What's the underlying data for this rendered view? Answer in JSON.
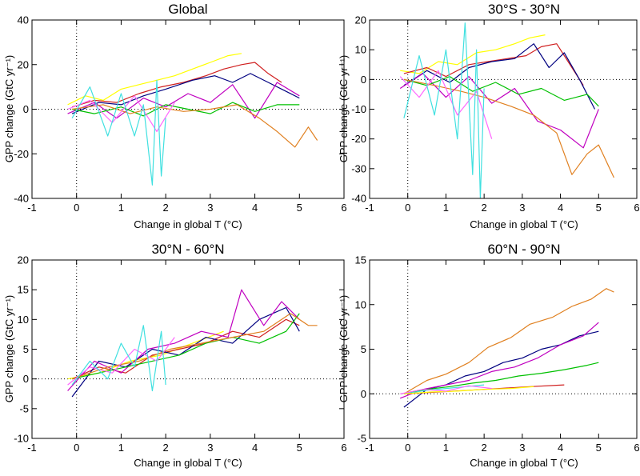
{
  "chart_data": [
    {
      "type": "line",
      "title": "Global",
      "xlabel": "Change in global T (°C)",
      "ylabel": "GPP change (GtC yr⁻¹)",
      "xlim": [
        -1,
        6
      ],
      "ylim": [
        -40,
        40
      ],
      "xticks": [
        -1,
        0,
        1,
        2,
        3,
        4,
        5,
        6
      ],
      "yticks": [
        -40,
        -20,
        0,
        20,
        40
      ],
      "reference_lines": {
        "x": 0,
        "y": 0,
        "style": "dotted"
      },
      "series": [
        {
          "color": "#ffff00",
          "x": [
            -0.2,
            0.2,
            0.6,
            1.0,
            1.4,
            1.8,
            2.2,
            2.6,
            3.0,
            3.4,
            3.7
          ],
          "y": [
            2,
            6,
            4,
            9,
            11,
            13,
            15,
            18,
            21,
            24,
            25
          ]
        },
        {
          "color": "#d02020",
          "x": [
            -0.1,
            0.4,
            0.9,
            1.4,
            1.9,
            2.4,
            2.9,
            3.3,
            3.7,
            4.0,
            4.3,
            4.6
          ],
          "y": [
            1,
            4,
            3,
            7,
            10,
            12,
            15,
            18,
            20,
            21,
            16,
            12
          ]
        },
        {
          "color": "#000080",
          "x": [
            -0.1,
            0.5,
            1.0,
            1.5,
            2.0,
            2.6,
            3.1,
            3.5,
            3.9,
            4.3,
            4.7,
            5.0
          ],
          "y": [
            -2,
            3,
            2,
            6,
            9,
            13,
            15,
            12,
            16,
            12,
            8,
            5
          ]
        },
        {
          "color": "#c000c0",
          "x": [
            -0.2,
            0.4,
            0.9,
            1.5,
            2.0,
            2.5,
            3.0,
            3.5,
            4.0,
            4.5,
            5.0
          ],
          "y": [
            -2,
            3,
            -4,
            5,
            1,
            7,
            3,
            11,
            -4,
            12,
            6
          ]
        },
        {
          "color": "#00c000",
          "x": [
            -0.1,
            0.4,
            1.0,
            1.5,
            2.0,
            2.5,
            3.0,
            3.5,
            4.0,
            4.5,
            5.0
          ],
          "y": [
            0,
            -2,
            1,
            -3,
            2,
            0,
            -2,
            3,
            -1,
            2,
            2
          ]
        },
        {
          "color": "#e08020",
          "x": [
            -0.1,
            0.6,
            1.2,
            1.8,
            2.4,
            3.0,
            3.6,
            4.1,
            4.5,
            4.9,
            5.2,
            5.4
          ],
          "y": [
            0,
            2,
            -2,
            1,
            -1,
            0,
            2,
            -4,
            -10,
            -17,
            -8,
            -14
          ]
        },
        {
          "color": "#ff66ff",
          "x": [
            -0.2,
            0.3,
            0.8,
            1.3,
            1.8,
            2.2
          ],
          "y": [
            0,
            4,
            -6,
            6,
            -10,
            3
          ]
        },
        {
          "color": "#40e0e0",
          "x": [
            -0.1,
            0.3,
            0.7,
            1.0,
            1.3,
            1.5,
            1.7,
            1.8,
            1.9,
            2.0
          ],
          "y": [
            -4,
            10,
            -12,
            7,
            -12,
            2,
            -34,
            13,
            -30,
            -4
          ]
        }
      ]
    },
    {
      "type": "line",
      "title": "30°S - 30°N",
      "xlabel": "Change in global T (°C)",
      "ylabel": "GPP change (GtC yr⁻¹)",
      "xlim": [
        -1,
        6
      ],
      "ylim": [
        -40,
        20
      ],
      "xticks": [
        -1,
        0,
        1,
        2,
        3,
        4,
        5,
        6
      ],
      "yticks": [
        -40,
        -30,
        -20,
        -10,
        0,
        10,
        20
      ],
      "reference_lines": {
        "x": 0,
        "y": 0,
        "style": "dotted"
      },
      "series": [
        {
          "color": "#ffff00",
          "x": [
            -0.2,
            0.3,
            0.8,
            1.3,
            1.8,
            2.3,
            2.8,
            3.2,
            3.6
          ],
          "y": [
            3,
            2,
            6,
            5,
            9,
            10,
            12,
            14,
            15
          ]
        },
        {
          "color": "#d02020",
          "x": [
            -0.1,
            0.5,
            1.0,
            1.6,
            2.1,
            2.6,
            3.1,
            3.5,
            3.9,
            4.2,
            4.6
          ],
          "y": [
            2,
            4,
            1,
            5,
            6,
            7,
            8,
            11,
            12,
            6,
            -2
          ]
        },
        {
          "color": "#000080",
          "x": [
            -0.1,
            0.5,
            1.1,
            1.6,
            2.2,
            2.8,
            3.3,
            3.7,
            4.1,
            4.5,
            4.9
          ],
          "y": [
            -2,
            3,
            -1,
            4,
            6,
            7,
            12,
            4,
            9,
            0,
            -10
          ]
        },
        {
          "color": "#c000c0",
          "x": [
            -0.2,
            0.4,
            1.0,
            1.6,
            2.2,
            2.8,
            3.4,
            4.0,
            4.6,
            5.0
          ],
          "y": [
            -3,
            2,
            -6,
            1,
            -8,
            -3,
            -14,
            -17,
            -23,
            -10
          ]
        },
        {
          "color": "#00c000",
          "x": [
            -0.1,
            0.5,
            1.1,
            1.7,
            2.3,
            2.9,
            3.5,
            4.1,
            4.7,
            5.0
          ],
          "y": [
            0,
            -2,
            1,
            -4,
            -1,
            -5,
            -3,
            -7,
            -5,
            -9
          ]
        },
        {
          "color": "#e08020",
          "x": [
            -0.1,
            0.7,
            1.4,
            2.0,
            2.7,
            3.3,
            3.9,
            4.3,
            4.7,
            5.0,
            5.4
          ],
          "y": [
            0,
            -2,
            -4,
            -6,
            -9,
            -12,
            -18,
            -32,
            -25,
            -22,
            -33
          ]
        },
        {
          "color": "#ff66ff",
          "x": [
            -0.2,
            0.3,
            0.8,
            1.3,
            1.8,
            2.2
          ],
          "y": [
            1,
            -6,
            3,
            -12,
            -4,
            -20
          ]
        },
        {
          "color": "#40e0e0",
          "x": [
            -0.1,
            0.3,
            0.7,
            1.0,
            1.3,
            1.5,
            1.7,
            1.8,
            1.9,
            2.0
          ],
          "y": [
            -13,
            8,
            -12,
            10,
            -20,
            19,
            -32,
            10,
            -40,
            -3
          ]
        }
      ]
    },
    {
      "type": "line",
      "title": "30°N - 60°N",
      "xlabel": "Change in global T (°C)",
      "ylabel": "GPP change (GtC yr⁻¹)",
      "xlim": [
        -1,
        6
      ],
      "ylim": [
        -10,
        20
      ],
      "xticks": [
        -1,
        0,
        1,
        2,
        3,
        4,
        5,
        6
      ],
      "yticks": [
        -10,
        -5,
        0,
        5,
        10,
        15,
        20
      ],
      "reference_lines": {
        "x": 0,
        "y": 0,
        "style": "dotted"
      },
      "series": [
        {
          "color": "#ffff00",
          "x": [
            -0.2,
            0.5,
            1.2,
            1.9,
            2.6,
            3.3
          ],
          "y": [
            0,
            1,
            3,
            4,
            6,
            8
          ]
        },
        {
          "color": "#d02020",
          "x": [
            -0.1,
            0.5,
            1.1,
            1.7,
            2.3,
            2.9,
            3.5,
            4.1,
            4.7,
            5.0
          ],
          "y": [
            0,
            2,
            1,
            4,
            5,
            6,
            8,
            7,
            10,
            9
          ]
        },
        {
          "color": "#000080",
          "x": [
            -0.1,
            0.5,
            1.1,
            1.7,
            2.3,
            2.9,
            3.5,
            4.1,
            4.7,
            5.0
          ],
          "y": [
            -3,
            3,
            2,
            5,
            4,
            7,
            6,
            10,
            12,
            8
          ]
        },
        {
          "color": "#c000c0",
          "x": [
            -0.2,
            0.4,
            1.0,
            1.6,
            2.2,
            2.8,
            3.4,
            3.7,
            4.2,
            4.6,
            5.0
          ],
          "y": [
            -2,
            3,
            1,
            5,
            6,
            8,
            7,
            15,
            9,
            13,
            10
          ]
        },
        {
          "color": "#00c000",
          "x": [
            -0.1,
            0.5,
            1.1,
            1.7,
            2.3,
            2.9,
            3.5,
            4.1,
            4.7,
            5.0
          ],
          "y": [
            0,
            1,
            2,
            3,
            4,
            6,
            7,
            6,
            8,
            11
          ]
        },
        {
          "color": "#e08020",
          "x": [
            -0.1,
            0.7,
            1.4,
            2.1,
            2.8,
            3.5,
            4.2,
            4.8,
            5.2,
            5.4
          ],
          "y": [
            0,
            2,
            3,
            5,
            6,
            7,
            8,
            11,
            9,
            9
          ]
        },
        {
          "color": "#ff66ff",
          "x": [
            -0.2,
            0.3,
            0.8,
            1.3,
            1.8,
            2.2
          ],
          "y": [
            -1,
            2,
            1,
            5,
            3,
            7
          ]
        },
        {
          "color": "#40e0e0",
          "x": [
            -0.1,
            0.3,
            0.7,
            1.0,
            1.3,
            1.5,
            1.7,
            1.9,
            2.0
          ],
          "y": [
            -1,
            3,
            0,
            6,
            2,
            9,
            -2,
            8,
            -1
          ]
        }
      ]
    },
    {
      "type": "line",
      "title": "60°N - 90°N",
      "xlabel": "Change in global T (°C)",
      "ylabel": "GPP change (GtC yr⁻¹)",
      "xlim": [
        -1,
        6
      ],
      "ylim": [
        -5,
        15
      ],
      "xticks": [
        -1,
        0,
        1,
        2,
        3,
        4,
        5,
        6
      ],
      "yticks": [
        -5,
        0,
        5,
        10,
        15
      ],
      "reference_lines": {
        "x": 0,
        "y": 0,
        "style": "dotted"
      },
      "series": [
        {
          "color": "#e08020",
          "x": [
            -0.1,
            0.5,
            1.0,
            1.6,
            2.1,
            2.7,
            3.2,
            3.8,
            4.3,
            4.8,
            5.2,
            5.4
          ],
          "y": [
            0,
            1.5,
            2.2,
            3.5,
            5.2,
            6.3,
            7.8,
            8.6,
            9.8,
            10.6,
            11.8,
            11.4
          ]
        },
        {
          "color": "#000080",
          "x": [
            -0.1,
            0.5,
            1.0,
            1.5,
            2.0,
            2.5,
            3.0,
            3.5,
            4.0,
            4.5,
            5.0
          ],
          "y": [
            -1.5,
            0.5,
            1,
            2,
            2.5,
            3.5,
            4,
            5,
            5.5,
            6.5,
            7
          ]
        },
        {
          "color": "#c000c0",
          "x": [
            -0.2,
            0.4,
            1.0,
            1.6,
            2.2,
            2.8,
            3.4,
            4.0,
            4.6,
            5.0
          ],
          "y": [
            -0.5,
            0.5,
            1,
            1.5,
            2.5,
            3,
            4,
            5.5,
            6.5,
            8
          ]
        },
        {
          "color": "#00c000",
          "x": [
            -0.1,
            0.5,
            1.1,
            1.7,
            2.3,
            2.9,
            3.5,
            4.1,
            4.7,
            5.0
          ],
          "y": [
            0,
            0.5,
            0.8,
            1.2,
            1.5,
            2,
            2.3,
            2.7,
            3.2,
            3.5
          ]
        },
        {
          "color": "#40e0e0",
          "x": [
            -0.1,
            0.5,
            1.0,
            1.5,
            2.0
          ],
          "y": [
            0,
            0.4,
            0.6,
            0.8,
            1
          ]
        },
        {
          "color": "#d02020",
          "x": [
            -0.1,
            0.8,
            1.6,
            2.4,
            3.2,
            4.1
          ],
          "y": [
            0,
            0.2,
            0.4,
            0.6,
            0.8,
            1
          ]
        },
        {
          "color": "#ffff00",
          "x": [
            -0.1,
            0.6,
            1.3,
            2.0,
            2.7,
            3.3
          ],
          "y": [
            0,
            0.2,
            0.3,
            0.5,
            0.6,
            0.8
          ]
        },
        {
          "color": "#ff66ff",
          "x": [
            -0.2,
            0.4,
            1.0,
            1.6,
            2.2
          ],
          "y": [
            0,
            0.5,
            0.3,
            0.9,
            0.6
          ]
        }
      ]
    }
  ]
}
